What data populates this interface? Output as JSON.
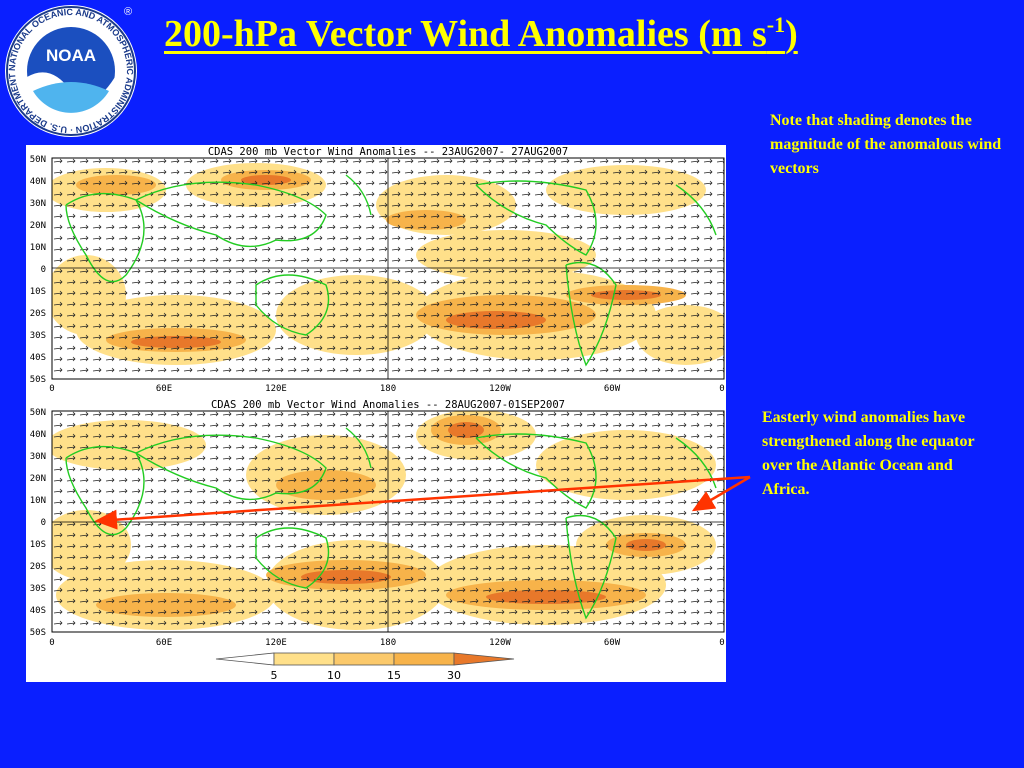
{
  "slide": {
    "title_main": "200-hPa Vector Wind Anomalies (m s",
    "title_sup": "-1",
    "title_close": ")",
    "note_top": "Note that shading denotes the magnitude of the anomalous wind vectors",
    "note_bottom": "Easterly wind anomalies have strengthened along the equator over the Atlantic Ocean and Africa."
  },
  "logo": {
    "center_text": "NOAA",
    "ring_text": "NATIONAL OCEANIC AND ATMOSPHERIC ADMINISTRATION · U.S. DEPARTMENT OF COMMERCE ·",
    "registered": "®"
  },
  "maps": {
    "top_title": "CDAS 200 mb Vector Wind Anomalies -- 23AUG2007- 27AUG2007",
    "bottom_title": "CDAS 200 mb Vector Wind Anomalies -- 28AUG2007-01SEP2007",
    "lat_labels": [
      "50N",
      "40N",
      "30N",
      "20N",
      "10N",
      "0",
      "10S",
      "20S",
      "30S",
      "40S",
      "50S"
    ],
    "lon_labels": [
      "0",
      "60E",
      "120E",
      "180",
      "120W",
      "60W",
      "0"
    ],
    "colorbar_labels": [
      "5",
      "10",
      "15",
      "30"
    ]
  },
  "colors": {
    "background": "#0a1fff",
    "title": "#ffff00",
    "notes": "#ffff00",
    "arrow": "#ff3300",
    "coast": "#22cc22",
    "shade_light": "#ffe08a",
    "shade_mid": "#f7b34a",
    "shade_dark": "#e8782a"
  }
}
